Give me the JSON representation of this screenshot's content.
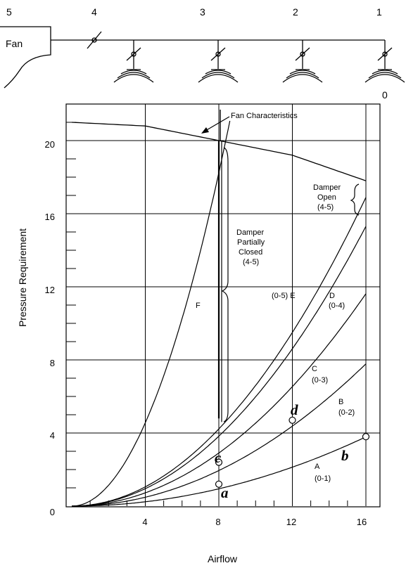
{
  "duct": {
    "fan_label": "Fan",
    "node_labels": [
      "5",
      "4",
      "3",
      "2",
      "1"
    ],
    "outlet_label": "0"
  },
  "chart": {
    "y_label": "Pressure Requirement",
    "x_label": "Airflow",
    "x_ticks": [
      "4",
      "8",
      "12",
      "16"
    ],
    "y_ticks": [
      "0",
      "4",
      "8",
      "12",
      "16",
      "20"
    ],
    "annotations": {
      "fan_characteristics": "Fan Characteristics",
      "damper_open": [
        "Damper",
        "Open",
        "(4-5)"
      ],
      "damper_partial": [
        "Damper",
        "Partially",
        "Closed",
        "(4-5)"
      ],
      "curve_F": "F",
      "curve_E": "(0-5) E",
      "curve_D": [
        "D",
        "(0-4)"
      ],
      "curve_C": [
        "C",
        "(0-3)"
      ],
      "curve_B": [
        "B",
        "(0-2)"
      ],
      "curve_A": [
        "A",
        "(0-1)"
      ]
    },
    "points": [
      "a",
      "b",
      "c",
      "d"
    ]
  },
  "chart_data": {
    "type": "line",
    "xlabel": "Airflow",
    "ylabel": "Pressure Requirement",
    "xlim": [
      0,
      16
    ],
    "ylim": [
      0,
      22
    ],
    "series": [
      {
        "name": "A (0-1)",
        "k": 0.0148
      },
      {
        "name": "B (0-2)",
        "k": 0.0304
      },
      {
        "name": "C (0-3)",
        "k": 0.0454
      },
      {
        "name": "D (0-4)",
        "k": 0.0598
      },
      {
        "name": "E (0-5)",
        "k": 0.066
      },
      {
        "name": "F",
        "k": 0.285
      }
    ],
    "fan_curve": {
      "x": [
        0,
        4,
        8,
        12,
        16
      ],
      "y": [
        21,
        20.8,
        20,
        19.2,
        17.8
      ]
    },
    "marked_points": [
      {
        "label": "a",
        "x": 8,
        "y": 1.2
      },
      {
        "label": "c",
        "x": 8,
        "y": 2.4
      },
      {
        "label": "d",
        "x": 12,
        "y": 4.7
      },
      {
        "label": "b",
        "x": 16,
        "y": 3.8
      }
    ]
  }
}
